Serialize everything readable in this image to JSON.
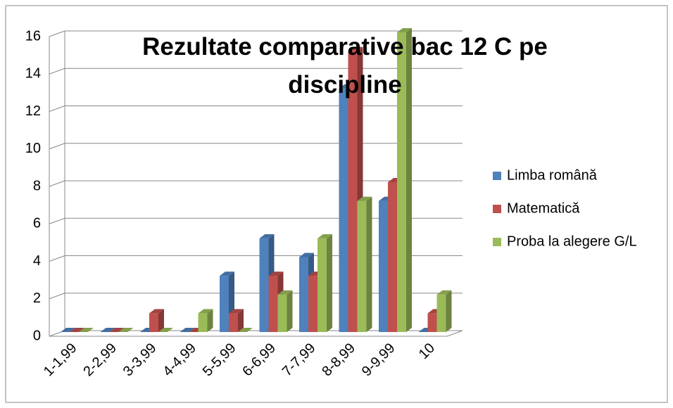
{
  "chart_data": {
    "type": "bar",
    "title": "Rezultate comparative bac 12 C pe discipline",
    "categories": [
      "1-1,99",
      "2-2,99",
      "3-3,99",
      "4-4,99",
      "5-5,99",
      "6-6,99",
      "7-7,99",
      "8-8,99",
      "9-9,99",
      "10"
    ],
    "series": [
      {
        "name": "Limba română",
        "color": "#4f81bd",
        "values": [
          0,
          0,
          0,
          0,
          3,
          5,
          4,
          13,
          7,
          0
        ]
      },
      {
        "name": "Matematică",
        "color": "#c0504d",
        "values": [
          0,
          0,
          1,
          0,
          1,
          3,
          3,
          15,
          8,
          1
        ]
      },
      {
        "name": "Proba la alegere G/L",
        "color": "#9bbb59",
        "values": [
          0,
          0,
          0,
          1,
          0,
          2,
          5,
          7,
          16,
          2
        ]
      }
    ],
    "ylim": [
      0,
      16
    ],
    "yticks": [
      0,
      2,
      4,
      6,
      8,
      10,
      12,
      14,
      16
    ],
    "grid": true,
    "legend": "right"
  }
}
